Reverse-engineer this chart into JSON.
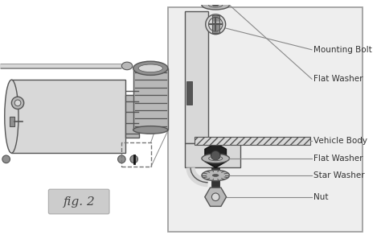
{
  "bg_color": "#ffffff",
  "border_color": "#888888",
  "label_color": "#333333",
  "line_color": "#888888",
  "metal_light": "#d8d8d8",
  "metal_mid": "#b8b8b8",
  "metal_dark": "#909090",
  "black": "#111111",
  "dark_gray": "#555555",
  "fig2_bg": "#cccccc",
  "labels": {
    "mounting_bolt": "Mounting Bolt",
    "flat_washer_top": "Flat Washer",
    "vehicle_body": "Vehicle Body",
    "flat_washer_bot": "Flat Washer",
    "star_washer": "Star Washer",
    "nut": "Nut",
    "fig": "fig. 2"
  },
  "font_size_label": 7.5,
  "font_size_fig": 11
}
